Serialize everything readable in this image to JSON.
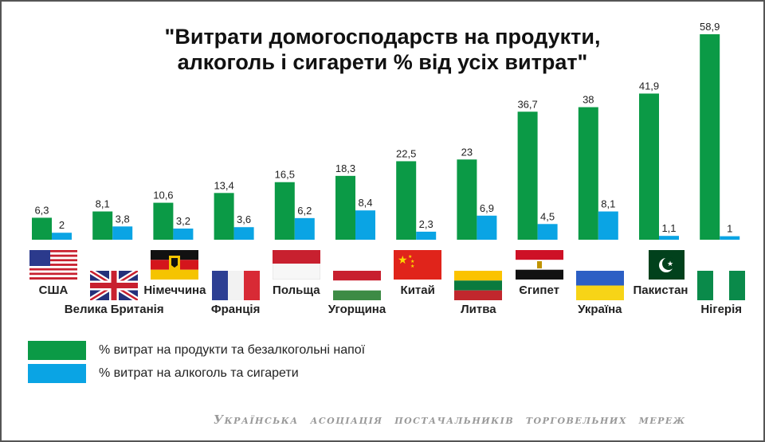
{
  "chart_data": {
    "type": "bar",
    "title": "\"Витрати домогосподарств на продукти, алкоголь і сигарети % від усіх витрат\"",
    "title_lines": [
      "\"Витрати домогосподарств на продукти,",
      "алкоголь і сигарети % від усіх витрат\""
    ],
    "categories": [
      "США",
      "Велика Британія",
      "Німеччина",
      "Франція",
      "Польща",
      "Угорщина",
      "Китай",
      "Литва",
      "Єгипет",
      "Україна",
      "Пакистан",
      "Нігерія"
    ],
    "series": [
      {
        "name": "% витрат на продукти та безалкогольні напої",
        "color": "#0b9a46",
        "values": [
          6.3,
          8.1,
          10.6,
          13.4,
          16.5,
          18.3,
          22.5,
          23,
          36.7,
          38,
          41.9,
          58.9
        ],
        "labels": [
          "6,3",
          "8,1",
          "10,6",
          "13,4",
          "16,5",
          "18,3",
          "22,5",
          "23",
          "36,7",
          "38",
          "41,9",
          "58,9"
        ]
      },
      {
        "name": "% витрат на алкоголь та сигарети",
        "color": "#0aa4e4",
        "values": [
          2,
          3.8,
          3.2,
          3.6,
          6.2,
          8.4,
          2.3,
          6.9,
          4.5,
          8.1,
          1.1,
          1
        ],
        "labels": [
          "2",
          "3,8",
          "3,2",
          "3,6",
          "6,2",
          "8,4",
          "2,3",
          "6,9",
          "4,5",
          "8,1",
          "1,1",
          "1"
        ]
      }
    ],
    "ylim": [
      0,
      60
    ],
    "grid": false,
    "legend": "bottom-left",
    "flags": [
      "usa-flag",
      "uk-flag",
      "germany-flag",
      "france-flag",
      "poland-flag",
      "hungary-flag",
      "china-flag",
      "lithuania-flag",
      "egypt-flag",
      "ukraine-flag",
      "pakistan-flag",
      "nigeria-flag"
    ]
  },
  "footer": "Українська асоціація постачальників торговельних мереж"
}
